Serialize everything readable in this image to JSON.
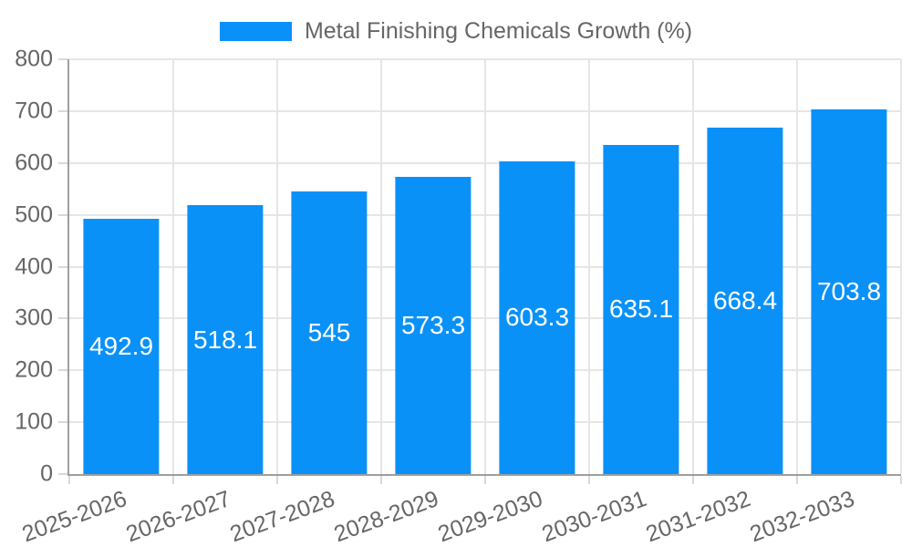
{
  "colors": {
    "bar": "#0a91f8",
    "grid": "#e6e6e6",
    "axis": "#9e9e9e",
    "tick_mark": "#d8d8d8",
    "tick_text": "#666666",
    "value_text": "#ffffff",
    "background": "#ffffff"
  },
  "chart_data": {
    "type": "bar",
    "title": "",
    "legend_label": "Metal Finishing Chemicals Growth (%)",
    "legend_position": "top",
    "categories": [
      "2025-2026",
      "2026-2027",
      "2027-2028",
      "2028-2029",
      "2029-2030",
      "2030-2031",
      "2031-2032",
      "2032-2033"
    ],
    "values": [
      492.9,
      518.1,
      545,
      573.3,
      603.3,
      635.1,
      668.4,
      703.8
    ],
    "xlabel": "",
    "ylabel": "",
    "ylim": [
      0,
      800
    ],
    "ytick_step": 100,
    "ytick_labels": [
      "0",
      "100",
      "200",
      "300",
      "400",
      "500",
      "600",
      "700",
      "800"
    ],
    "grid": true,
    "value_labels_inside_bars": true,
    "x_label_rotation_deg": -20
  }
}
